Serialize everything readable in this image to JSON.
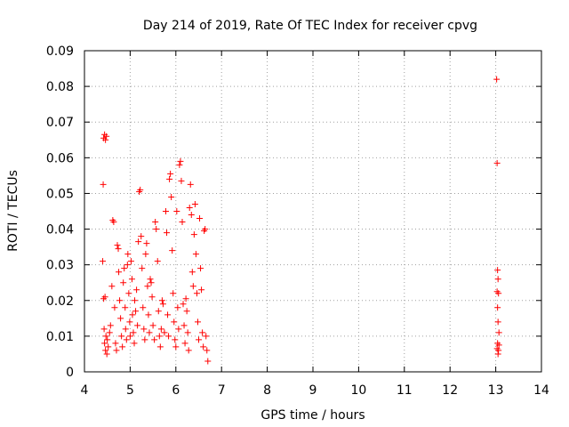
{
  "chart_data": {
    "type": "scatter",
    "title": "Day 214 of 2019, Rate Of TEC Index for receiver cpvg",
    "xlabel": "GPS time / hours",
    "ylabel": "ROTI / TECUs",
    "xlim": [
      4,
      14
    ],
    "ylim": [
      0,
      0.09
    ],
    "xticks": [
      "4",
      "5",
      "6",
      "7",
      "8",
      "9",
      "10",
      "11",
      "12",
      "13",
      "14"
    ],
    "yticks": [
      "0",
      "0.01",
      "0.02",
      "0.03",
      "0.04",
      "0.05",
      "0.06",
      "0.07",
      "0.08",
      "0.09"
    ],
    "grid": true,
    "marker": "+",
    "color": "#ff0000",
    "series": [
      {
        "name": "ROTI",
        "points": [
          [
            4.42,
            0.0655
          ],
          [
            4.44,
            0.0665
          ],
          [
            4.46,
            0.065
          ],
          [
            4.48,
            0.066
          ],
          [
            4.41,
            0.0525
          ],
          [
            4.4,
            0.031
          ],
          [
            4.42,
            0.0205
          ],
          [
            4.45,
            0.021
          ],
          [
            4.43,
            0.012
          ],
          [
            4.44,
            0.008
          ],
          [
            4.46,
            0.006
          ],
          [
            4.47,
            0.01
          ],
          [
            4.49,
            0.005
          ],
          [
            4.5,
            0.009
          ],
          [
            4.52,
            0.007
          ],
          [
            4.55,
            0.011
          ],
          [
            4.57,
            0.013
          ],
          [
            4.6,
            0.024
          ],
          [
            4.62,
            0.0425
          ],
          [
            4.64,
            0.042
          ],
          [
            4.66,
            0.018
          ],
          [
            4.68,
            0.008
          ],
          [
            4.7,
            0.006
          ],
          [
            4.72,
            0.0355
          ],
          [
            4.74,
            0.0345
          ],
          [
            4.75,
            0.028
          ],
          [
            4.77,
            0.02
          ],
          [
            4.79,
            0.015
          ],
          [
            4.81,
            0.01
          ],
          [
            4.83,
            0.007
          ],
          [
            4.85,
            0.025
          ],
          [
            4.87,
            0.029
          ],
          [
            4.89,
            0.018
          ],
          [
            4.9,
            0.012
          ],
          [
            4.92,
            0.009
          ],
          [
            4.94,
            0.03
          ],
          [
            4.95,
            0.033
          ],
          [
            4.97,
            0.022
          ],
          [
            4.99,
            0.014
          ],
          [
            5.0,
            0.01
          ],
          [
            5.02,
            0.031
          ],
          [
            5.04,
            0.026
          ],
          [
            5.05,
            0.016
          ],
          [
            5.07,
            0.011
          ],
          [
            5.09,
            0.008
          ],
          [
            5.1,
            0.02
          ],
          [
            5.12,
            0.017
          ],
          [
            5.14,
            0.023
          ],
          [
            5.16,
            0.013
          ],
          [
            5.18,
            0.0365
          ],
          [
            5.2,
            0.0505
          ],
          [
            5.22,
            0.051
          ],
          [
            5.24,
            0.038
          ],
          [
            5.26,
            0.029
          ],
          [
            5.28,
            0.018
          ],
          [
            5.3,
            0.012
          ],
          [
            5.32,
            0.009
          ],
          [
            5.34,
            0.033
          ],
          [
            5.36,
            0.036
          ],
          [
            5.38,
            0.024
          ],
          [
            5.4,
            0.016
          ],
          [
            5.42,
            0.011
          ],
          [
            5.44,
            0.026
          ],
          [
            5.46,
            0.025
          ],
          [
            5.48,
            0.021
          ],
          [
            5.5,
            0.013
          ],
          [
            5.53,
            0.009
          ],
          [
            5.55,
            0.042
          ],
          [
            5.57,
            0.04
          ],
          [
            5.6,
            0.031
          ],
          [
            5.62,
            0.017
          ],
          [
            5.64,
            0.01
          ],
          [
            5.66,
            0.007
          ],
          [
            5.68,
            0.012
          ],
          [
            5.7,
            0.02
          ],
          [
            5.72,
            0.019
          ],
          [
            5.75,
            0.011
          ],
          [
            5.78,
            0.045
          ],
          [
            5.8,
            0.039
          ],
          [
            5.82,
            0.016
          ],
          [
            5.84,
            0.01
          ],
          [
            5.86,
            0.054
          ],
          [
            5.88,
            0.0555
          ],
          [
            5.9,
            0.049
          ],
          [
            5.92,
            0.034
          ],
          [
            5.94,
            0.022
          ],
          [
            5.96,
            0.014
          ],
          [
            5.98,
            0.009
          ],
          [
            6.0,
            0.007
          ],
          [
            6.02,
            0.045
          ],
          [
            6.04,
            0.018
          ],
          [
            6.06,
            0.012
          ],
          [
            6.08,
            0.058
          ],
          [
            6.1,
            0.059
          ],
          [
            6.12,
            0.0535
          ],
          [
            6.14,
            0.042
          ],
          [
            6.16,
            0.019
          ],
          [
            6.18,
            0.013
          ],
          [
            6.2,
            0.008
          ],
          [
            6.22,
            0.0205
          ],
          [
            6.24,
            0.017
          ],
          [
            6.26,
            0.011
          ],
          [
            6.28,
            0.006
          ],
          [
            6.3,
            0.046
          ],
          [
            6.32,
            0.0525
          ],
          [
            6.34,
            0.044
          ],
          [
            6.36,
            0.028
          ],
          [
            6.38,
            0.024
          ],
          [
            6.4,
            0.0385
          ],
          [
            6.42,
            0.047
          ],
          [
            6.44,
            0.033
          ],
          [
            6.46,
            0.022
          ],
          [
            6.48,
            0.014
          ],
          [
            6.5,
            0.009
          ],
          [
            6.52,
            0.043
          ],
          [
            6.54,
            0.029
          ],
          [
            6.56,
            0.023
          ],
          [
            6.58,
            0.011
          ],
          [
            6.6,
            0.007
          ],
          [
            6.62,
            0.0395
          ],
          [
            6.64,
            0.04
          ],
          [
            6.66,
            0.01
          ],
          [
            6.68,
            0.006
          ],
          [
            6.7,
            0.003
          ],
          [
            13.02,
            0.082
          ],
          [
            13.03,
            0.0585
          ],
          [
            13.04,
            0.0285
          ],
          [
            13.05,
            0.026
          ],
          [
            13.03,
            0.0225
          ],
          [
            13.06,
            0.022
          ],
          [
            13.04,
            0.018
          ],
          [
            13.05,
            0.014
          ],
          [
            13.07,
            0.011
          ],
          [
            13.04,
            0.008
          ],
          [
            13.06,
            0.006
          ],
          [
            13.05,
            0.005
          ],
          [
            13.03,
            0.0065
          ],
          [
            13.07,
            0.0075
          ]
        ]
      }
    ]
  }
}
